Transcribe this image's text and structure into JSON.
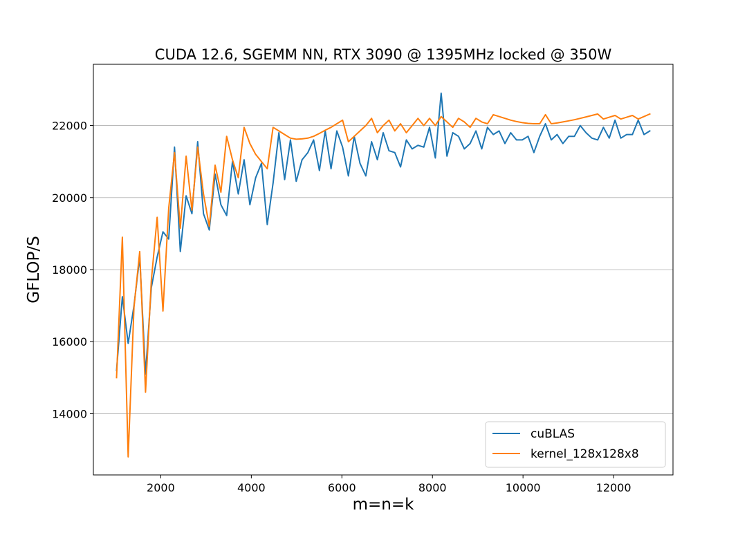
{
  "chart_data": {
    "type": "line",
    "title": "CUDA 12.6, SGEMM NN, RTX 3090 @ 1395MHz locked @ 350W",
    "xlabel": "m=n=k",
    "ylabel": "GFLOP/S",
    "xlim": [
      512,
      13312
    ],
    "ylim": [
      12300,
      23700
    ],
    "xticks": [
      2000,
      4000,
      6000,
      8000,
      10000,
      12000
    ],
    "yticks": [
      14000,
      16000,
      18000,
      20000,
      22000
    ],
    "grid": "y",
    "legend_position": "lower-right",
    "x": [
      1024,
      1152,
      1280,
      1408,
      1536,
      1664,
      1792,
      1920,
      2048,
      2176,
      2304,
      2432,
      2560,
      2688,
      2816,
      2944,
      3072,
      3200,
      3328,
      3456,
      3584,
      3712,
      3840,
      3968,
      4096,
      4224,
      4352,
      4480,
      4608,
      4736,
      4864,
      4992,
      5120,
      5248,
      5376,
      5504,
      5632,
      5760,
      5888,
      6016,
      6144,
      6272,
      6400,
      6528,
      6656,
      6784,
      6912,
      7040,
      7168,
      7296,
      7424,
      7552,
      7680,
      7808,
      7936,
      8064,
      8192,
      8320,
      8448,
      8576,
      8704,
      8832,
      8960,
      9088,
      9216,
      9344,
      9472,
      9600,
      9728,
      9856,
      9984,
      10112,
      10240,
      10368,
      10496,
      10624,
      10752,
      10880,
      11008,
      11136,
      11264,
      11392,
      11520,
      11648,
      11776,
      11904,
      12032,
      12160,
      12288,
      12416,
      12544,
      12672,
      12800
    ],
    "series": [
      {
        "name": "cuBLAS",
        "color": "#1f77b4",
        "values": [
          15200,
          17250,
          15950,
          17000,
          18350,
          15100,
          17500,
          18350,
          19050,
          18850,
          21400,
          18500,
          20050,
          19550,
          21550,
          19550,
          19100,
          20650,
          19800,
          19500,
          21000,
          20100,
          21050,
          19800,
          20550,
          20950,
          19250,
          20400,
          21800,
          20500,
          21600,
          20450,
          21050,
          21250,
          21600,
          20750,
          21850,
          20800,
          21850,
          21400,
          20600,
          21700,
          20950,
          20600,
          21550,
          21050,
          21800,
          21300,
          21250,
          20850,
          21600,
          21350,
          21450,
          21400,
          21950,
          21100,
          22900,
          21150,
          21800,
          21700,
          21350,
          21500,
          21850,
          21350,
          21950,
          21750,
          21850,
          21500,
          21800,
          21600,
          21600,
          21700,
          21250,
          21700,
          22050,
          21600,
          21750,
          21500,
          21700,
          21700,
          22000,
          21800,
          21650,
          21600,
          21950,
          21650,
          22150,
          21650,
          21750,
          21750,
          22150,
          21750,
          21850
        ]
      },
      {
        "name": "kernel_128x128x8",
        "color": "#ff7f0e",
        "values": [
          15000,
          18900,
          12800,
          16950,
          18500,
          14600,
          17700,
          19450,
          16850,
          19700,
          21250,
          19150,
          21150,
          19650,
          21400,
          20100,
          19200,
          20900,
          20150,
          21700,
          21050,
          20550,
          21950,
          21500,
          21200,
          21000,
          20800,
          21950,
          21850,
          21750,
          21650,
          21620,
          21630,
          21650,
          21700,
          21780,
          21870,
          21950,
          22050,
          22150,
          21550,
          21700,
          21850,
          22000,
          22200,
          21800,
          22000,
          22150,
          21850,
          22050,
          21800,
          22000,
          22200,
          22000,
          22200,
          22000,
          22250,
          22100,
          21950,
          22200,
          22100,
          21950,
          22200,
          22100,
          22050,
          22300,
          22250,
          22200,
          22150,
          22110,
          22080,
          22060,
          22050,
          22050,
          22300,
          22050,
          22070,
          22100,
          22130,
          22160,
          22200,
          22240,
          22280,
          22320,
          22180,
          22230,
          22280,
          22180,
          22230,
          22280,
          22180,
          22250,
          22320
        ]
      }
    ]
  }
}
